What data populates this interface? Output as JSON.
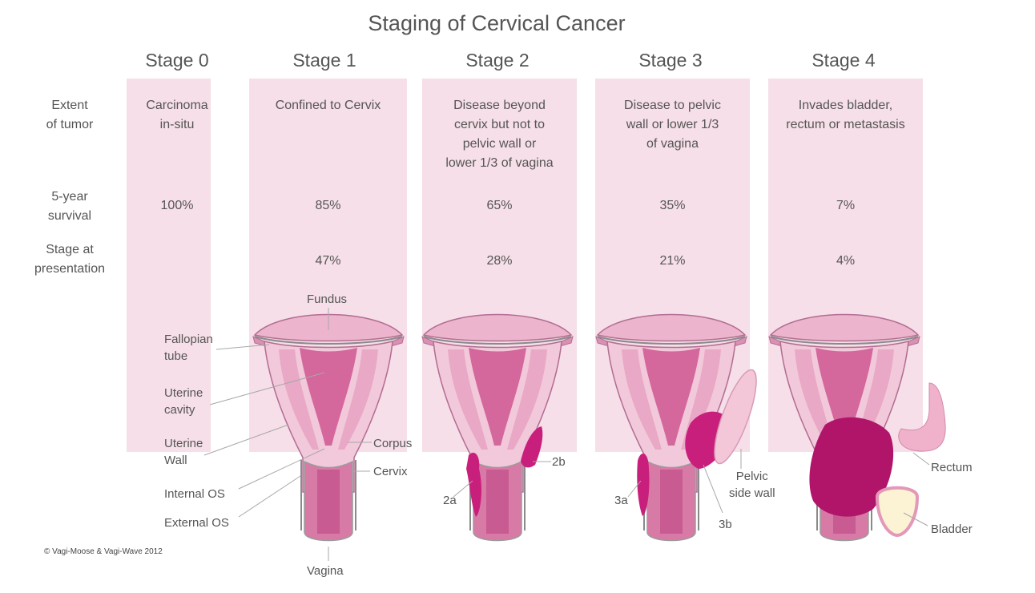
{
  "title": "Staging of Cervical Cancer",
  "row_labels": {
    "extent": [
      "Extent",
      "of tumor"
    ],
    "survival": [
      "5-year",
      "survival"
    ],
    "presentation": [
      "Stage at",
      "presentation"
    ]
  },
  "stages": [
    {
      "name": "Stage 0",
      "extent": [
        "Carcinoma",
        "in-situ"
      ],
      "survival": "100%",
      "presentation": ""
    },
    {
      "name": "Stage 1",
      "extent": [
        "Confined to Cervix"
      ],
      "survival": "85%",
      "presentation": "47%"
    },
    {
      "name": "Stage 2",
      "extent": [
        "Disease beyond",
        "cervix but not to",
        "pelvic wall or",
        "lower 1/3 of vagina"
      ],
      "survival": "65%",
      "presentation": "28%"
    },
    {
      "name": "Stage 3",
      "extent": [
        "Disease to pelvic",
        "wall or lower 1/3",
        "of vagina"
      ],
      "survival": "35%",
      "presentation": "21%"
    },
    {
      "name": "Stage 4",
      "extent": [
        "Invades bladder,",
        "rectum or metastasis"
      ],
      "survival": "7%",
      "presentation": "4%"
    }
  ],
  "anatomy_labels": {
    "fundus": "Fundus",
    "fallopian_tube": [
      "Fallopian",
      "tube"
    ],
    "uterine_cavity": [
      "Uterine",
      "cavity"
    ],
    "uterine_wall": [
      "Uterine",
      "Wall"
    ],
    "internal_os": "Internal OS",
    "external_os": "External OS",
    "vagina": "Vagina",
    "corpus": "Corpus",
    "cervix": "Cervix"
  },
  "tumor_labels": {
    "s2a": "2a",
    "s2b": "2b",
    "s3a": "3a",
    "s3b": "3b",
    "pelvic_side_wall": [
      "Pelvic",
      "side wall"
    ],
    "rectum": "Rectum",
    "bladder": "Bladder"
  },
  "copyright": "© Vagi-Moose & Vagi-Wave 2012",
  "colors": {
    "panel": "#f6dfe8",
    "uterus": "#e7a3c0",
    "uterus_dark": "#c8578d",
    "tumor": "#c91f7c",
    "tumor_deep": "#a5105d"
  }
}
